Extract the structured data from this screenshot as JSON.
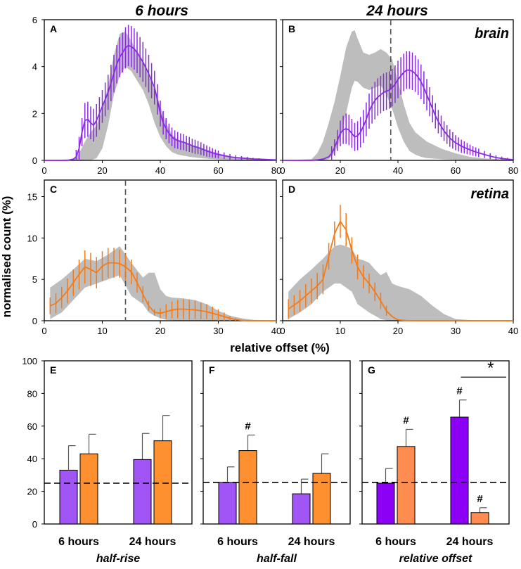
{
  "figure": {
    "col_titles": [
      "6 hours",
      "24 hours"
    ],
    "ylabel": "normalised count (%)",
    "xlabel": "relative offset (%)",
    "panel_letters": [
      "A",
      "B",
      "C",
      "D",
      "E",
      "F",
      "G"
    ],
    "row_labels": [
      "brain",
      "retina"
    ]
  },
  "colors": {
    "purple": "#8B2BE2",
    "orange": "#F57A18",
    "band": "#BDBDBD",
    "bar_purple": "#A155F5",
    "bar_orange": "#FF9030",
    "bar_purple_dark": "#8D00F6",
    "bar_orange_light": "#FF8C50"
  },
  "chart_data": [
    {
      "panel": "A",
      "type": "line",
      "title": "6 hours",
      "xlim": [
        0,
        80
      ],
      "ylim": [
        0,
        6
      ],
      "xticks": [
        "0",
        "20",
        "40",
        "60",
        "80"
      ],
      "yticks": [
        "0",
        "2",
        "4",
        "6"
      ],
      "band": {
        "x": [
          0,
          10,
          12,
          14,
          16,
          18,
          20,
          22,
          24,
          26,
          28,
          30,
          32,
          34,
          36,
          38,
          40,
          42,
          44,
          46,
          48,
          50,
          55,
          60,
          65,
          70,
          75,
          80
        ],
        "upper": [
          0,
          0.05,
          0.3,
          0.8,
          1.2,
          1.5,
          2.2,
          3.2,
          4.5,
          5.4,
          5.5,
          5.1,
          4.6,
          4.2,
          3.6,
          3.0,
          2.3,
          1.6,
          1.1,
          0.9,
          0.8,
          0.7,
          0.5,
          0.3,
          0.15,
          0.08,
          0.05,
          0.03
        ],
        "lower": [
          0,
          0,
          0,
          0,
          0,
          0.1,
          0.5,
          1.5,
          2.8,
          3.6,
          4.0,
          3.8,
          3.4,
          3.0,
          2.4,
          1.6,
          1.0,
          0.6,
          0.35,
          0.25,
          0.2,
          0.15,
          0.08,
          0.04,
          0.02,
          0,
          0,
          0
        ]
      },
      "series": {
        "name": "brain 6h",
        "color": "purple",
        "x": [
          0,
          2,
          4,
          6,
          8,
          10,
          11,
          12,
          13,
          14,
          15,
          16,
          17,
          18,
          19,
          20,
          21,
          22,
          23,
          24,
          25,
          26,
          27,
          28,
          29,
          30,
          31,
          32,
          33,
          34,
          35,
          36,
          37,
          38,
          39,
          40,
          41,
          42,
          43,
          44,
          45,
          46,
          47,
          48,
          49,
          50,
          51,
          52,
          53,
          54,
          55,
          56,
          57,
          58,
          59,
          60,
          62,
          64,
          66,
          68,
          70,
          72,
          74,
          76,
          78,
          80
        ],
        "y": [
          0,
          0,
          0,
          0,
          0,
          0.05,
          0.15,
          0.5,
          1.2,
          1.7,
          1.75,
          1.6,
          1.5,
          1.7,
          2.0,
          2.3,
          2.6,
          2.9,
          3.3,
          3.7,
          4.1,
          4.4,
          4.6,
          4.8,
          4.9,
          4.85,
          4.75,
          4.6,
          4.4,
          4.2,
          3.95,
          3.7,
          3.4,
          3.1,
          2.6,
          2.0,
          1.6,
          1.35,
          1.15,
          1.0,
          0.9,
          0.85,
          0.8,
          0.78,
          0.72,
          0.68,
          0.62,
          0.58,
          0.55,
          0.5,
          0.45,
          0.4,
          0.36,
          0.32,
          0.28,
          0.25,
          0.2,
          0.15,
          0.12,
          0.1,
          0.08,
          0.06,
          0.05,
          0.04,
          0.03,
          0.02
        ],
        "err_from": 11,
        "err_to": 75,
        "err": [
          0,
          0,
          0,
          0,
          0,
          0,
          0.3,
          0.5,
          0.6,
          0.75,
          0.75,
          0.7,
          0.7,
          0.7,
          0.7,
          0.7,
          0.72,
          0.75,
          0.78,
          0.8,
          0.82,
          0.85,
          0.85,
          0.88,
          0.88,
          0.88,
          0.88,
          0.88,
          0.86,
          0.85,
          0.82,
          0.8,
          0.75,
          0.72,
          0.65,
          0.55,
          0.5,
          0.45,
          0.42,
          0.4,
          0.38,
          0.36,
          0.35,
          0.34,
          0.33,
          0.32,
          0.3,
          0.3,
          0.28,
          0.27,
          0.25,
          0.24,
          0.22,
          0.2,
          0.18,
          0.17,
          0.14,
          0.12,
          0.1,
          0.08,
          0.07,
          0.05,
          0.04,
          0.03,
          0.02,
          0.02
        ]
      }
    },
    {
      "panel": "B",
      "type": "line",
      "title": "24 hours",
      "row_label": "brain",
      "xlim": [
        0,
        80
      ],
      "ylim": [
        0,
        6
      ],
      "xticks": [
        "0",
        "20",
        "40",
        "60",
        "80"
      ],
      "yticks": [],
      "vline": 37.5,
      "band": {
        "x": [
          0,
          10,
          12,
          14,
          16,
          18,
          20,
          22,
          24,
          25,
          26,
          28,
          30,
          32,
          34,
          36,
          38,
          40,
          42,
          44,
          46,
          48,
          50,
          55,
          60,
          65,
          70,
          75,
          80
        ],
        "upper": [
          0,
          0.05,
          0.3,
          0.8,
          1.6,
          2.5,
          3.6,
          4.8,
          5.5,
          5.55,
          5.2,
          4.6,
          4.5,
          4.6,
          4.75,
          4.6,
          4.3,
          3.4,
          2.4,
          1.6,
          1.2,
          1.0,
          0.8,
          0.5,
          0.3,
          0.15,
          0.08,
          0.05,
          0.03
        ],
        "lower": [
          0,
          0,
          0,
          0,
          0.05,
          0.3,
          0.9,
          2.0,
          3.1,
          3.4,
          3.35,
          3.1,
          3.0,
          3.1,
          3.2,
          2.8,
          2.2,
          1.4,
          0.8,
          0.4,
          0.25,
          0.15,
          0.1,
          0.05,
          0.02,
          0,
          0,
          0,
          0
        ]
      },
      "series": {
        "name": "brain 24h",
        "color": "purple",
        "x": [
          0,
          2,
          4,
          6,
          8,
          10,
          12,
          14,
          16,
          17,
          18,
          19,
          20,
          21,
          22,
          23,
          24,
          25,
          26,
          27,
          28,
          29,
          30,
          31,
          32,
          33,
          34,
          35,
          36,
          37,
          38,
          39,
          40,
          41,
          42,
          43,
          44,
          45,
          46,
          47,
          48,
          49,
          50,
          51,
          52,
          53,
          54,
          55,
          56,
          57,
          58,
          59,
          60,
          61,
          62,
          63,
          64,
          65,
          66,
          67,
          68,
          70,
          72,
          74,
          76,
          78,
          80
        ],
        "y": [
          0,
          0,
          0,
          0,
          0,
          0,
          0.02,
          0.05,
          0.15,
          0.3,
          0.55,
          0.85,
          1.15,
          1.3,
          1.35,
          1.3,
          1.15,
          1.0,
          1.05,
          1.2,
          1.45,
          1.75,
          2.1,
          2.35,
          2.55,
          2.7,
          2.8,
          2.9,
          2.95,
          3.0,
          3.1,
          3.25,
          3.45,
          3.6,
          3.75,
          3.85,
          3.85,
          3.8,
          3.7,
          3.55,
          3.35,
          3.1,
          2.8,
          2.5,
          2.2,
          1.9,
          1.65,
          1.45,
          1.25,
          1.1,
          0.95,
          0.85,
          0.75,
          0.68,
          0.6,
          0.55,
          0.5,
          0.45,
          0.4,
          0.36,
          0.32,
          0.25,
          0.18,
          0.12,
          0.08,
          0.05,
          0.03
        ],
        "err_from": 17,
        "err_to": 78,
        "err": [
          0,
          0,
          0,
          0,
          0,
          0,
          0,
          0,
          0,
          0.3,
          0.35,
          0.45,
          0.55,
          0.6,
          0.65,
          0.65,
          0.62,
          0.6,
          0.62,
          0.65,
          0.7,
          0.72,
          0.75,
          0.78,
          0.8,
          0.8,
          0.8,
          0.8,
          0.8,
          0.8,
          0.8,
          0.8,
          0.8,
          0.8,
          0.8,
          0.8,
          0.8,
          0.8,
          0.78,
          0.76,
          0.74,
          0.7,
          0.67,
          0.62,
          0.58,
          0.54,
          0.5,
          0.46,
          0.42,
          0.4,
          0.37,
          0.35,
          0.32,
          0.3,
          0.28,
          0.26,
          0.24,
          0.22,
          0.2,
          0.19,
          0.18,
          0.15,
          0.12,
          0.1,
          0.08,
          0.06,
          0.04
        ]
      }
    },
    {
      "panel": "C",
      "type": "line",
      "title": "",
      "xlim": [
        0,
        40
      ],
      "ylim": [
        0,
        17
      ],
      "xticks": [
        "0",
        "10",
        "20",
        "30",
        "40"
      ],
      "yticks": [
        "0",
        "5",
        "10",
        "15"
      ],
      "vline": 14,
      "band": {
        "x": [
          1,
          3,
          5,
          7,
          9,
          11,
          13,
          15,
          17,
          18,
          19,
          20,
          21,
          22,
          24,
          26,
          28,
          30,
          32,
          34,
          36,
          38,
          40
        ],
        "upper": [
          4.0,
          5.0,
          6.2,
          7.5,
          7.2,
          8.0,
          9.0,
          7.0,
          5.2,
          5.8,
          5.8,
          3.8,
          3.0,
          2.8,
          2.7,
          2.5,
          2.0,
          1.2,
          0.6,
          0.3,
          0.1,
          0.05,
          0
        ],
        "lower": [
          0.2,
          1.0,
          2.5,
          4.0,
          4.5,
          5.0,
          5.5,
          3.0,
          2.0,
          1.0,
          0.6,
          0.3,
          0.1,
          0.05,
          0,
          0,
          0,
          0,
          0,
          0,
          0,
          0,
          0
        ]
      },
      "series": {
        "name": "retina 6h",
        "color": "orange",
        "x": [
          1,
          2,
          3,
          4,
          5,
          6,
          7,
          8,
          9,
          10,
          11,
          12,
          13,
          14,
          15,
          16,
          17,
          18,
          19,
          20,
          21,
          22,
          23,
          24,
          25,
          26,
          27,
          28,
          29,
          30,
          31,
          32,
          33,
          34,
          35,
          36,
          37,
          38,
          39,
          40
        ],
        "y": [
          1.8,
          2.1,
          2.8,
          3.6,
          4.6,
          5.6,
          6.5,
          6.2,
          5.8,
          6.6,
          7.0,
          7.0,
          6.9,
          6.5,
          5.9,
          4.6,
          3.2,
          1.8,
          1.0,
          0.9,
          1.1,
          1.3,
          1.4,
          1.4,
          1.35,
          1.3,
          1.2,
          1.1,
          0.9,
          0.7,
          0.5,
          0.3,
          0.15,
          0.05,
          0,
          0,
          0,
          0,
          0,
          0
        ],
        "err_from": 1,
        "err_to": 33,
        "err": [
          1.0,
          1.2,
          1.3,
          1.5,
          1.6,
          1.8,
          2.0,
          2.0,
          1.9,
          1.8,
          1.8,
          1.8,
          1.7,
          1.6,
          1.5,
          1.2,
          1.0,
          0.6,
          0.4,
          0.6,
          0.9,
          1.0,
          1.1,
          1.2,
          1.2,
          1.1,
          1.0,
          0.9,
          0.8,
          0.7,
          0.5,
          0.3,
          0.15,
          0,
          0,
          0,
          0,
          0,
          0,
          0
        ]
      }
    },
    {
      "panel": "D",
      "type": "line",
      "title": "",
      "row_label": "retina",
      "xlim": [
        0,
        40
      ],
      "ylim": [
        0,
        17
      ],
      "xticks": [
        "0",
        "10",
        "20",
        "30",
        "40"
      ],
      "yticks": [],
      "band": {
        "x": [
          1,
          3,
          5,
          7,
          9,
          10,
          11,
          12,
          13,
          14,
          15,
          16,
          17,
          18,
          19,
          20,
          22,
          24,
          26,
          28,
          30,
          34,
          40
        ],
        "upper": [
          3.5,
          5.0,
          6.2,
          7.5,
          9.0,
          9.2,
          9.0,
          8.7,
          7.5,
          7.3,
          7.0,
          6.2,
          5.5,
          5.9,
          4.5,
          4.2,
          3.8,
          3.0,
          1.8,
          0.8,
          0.2,
          0,
          0
        ],
        "lower": [
          0.2,
          1.0,
          2.0,
          3.5,
          4.5,
          4.5,
          4.0,
          3.5,
          2.0,
          1.5,
          1.0,
          0.6,
          0.2,
          0.05,
          0,
          0,
          0,
          0,
          0,
          0,
          0,
          0,
          0
        ]
      },
      "series": {
        "name": "retina 24h",
        "color": "orange",
        "x": [
          1,
          2,
          3,
          4,
          5,
          6,
          7,
          8,
          9,
          10,
          11,
          12,
          13,
          14,
          15,
          16,
          17,
          18,
          19,
          20,
          22,
          24,
          26,
          28,
          30,
          32,
          34,
          36,
          38,
          40
        ],
        "y": [
          1.4,
          1.9,
          2.4,
          3.0,
          3.6,
          4.2,
          5.0,
          7.8,
          10.5,
          12.0,
          11.0,
          8.5,
          6.5,
          5.3,
          4.5,
          3.5,
          2.4,
          1.2,
          0.5,
          0.1,
          0,
          0,
          0,
          0,
          0,
          0,
          0,
          0,
          0,
          0
        ],
        "err_from": 1,
        "err_to": 18,
        "err": [
          1.2,
          1.2,
          1.3,
          1.4,
          1.5,
          1.6,
          1.8,
          1.6,
          1.5,
          2.0,
          2.0,
          1.6,
          1.5,
          1.4,
          1.2,
          1.1,
          1.0,
          0.6,
          0,
          0,
          0,
          0,
          0,
          0,
          0,
          0,
          0,
          0,
          0,
          0
        ]
      }
    },
    {
      "panel": "E",
      "type": "bar",
      "group_label": "half-rise",
      "ylim": [
        0,
        100
      ],
      "yticks": [
        "0",
        "20",
        "40",
        "60",
        "80",
        "100"
      ],
      "categories": [
        "6 hours",
        "24 hours"
      ],
      "hline": 25,
      "series": [
        {
          "name": "brain",
          "color": "bar_purple",
          "values": [
            33,
            39.5
          ],
          "errors": [
            15,
            16
          ]
        },
        {
          "name": "retina",
          "color": "bar_orange",
          "values": [
            43,
            51
          ],
          "errors": [
            12,
            15.5
          ]
        }
      ],
      "annotations": []
    },
    {
      "panel": "F",
      "type": "bar",
      "group_label": "half-fall",
      "ylim": [
        0,
        100
      ],
      "yticks": [],
      "categories": [
        "6 hours",
        "24 hours"
      ],
      "hline": 25.5,
      "series": [
        {
          "name": "brain",
          "color": "bar_purple",
          "values": [
            25.5,
            18.5
          ],
          "errors": [
            9.5,
            9
          ]
        },
        {
          "name": "retina",
          "color": "bar_orange",
          "values": [
            45,
            31
          ],
          "errors": [
            9.5,
            12
          ]
        }
      ],
      "annotations": [
        {
          "text": "#",
          "category": 0,
          "series": 1
        }
      ]
    },
    {
      "panel": "G",
      "type": "bar",
      "group_label": "relative offset",
      "ylim": [
        0,
        100
      ],
      "yticks": [],
      "categories": [
        "6 hours",
        "24 hours"
      ],
      "hline": 25.5,
      "series": [
        {
          "name": "brain",
          "color": "bar_purple_dark",
          "values": [
            25,
            65.5
          ],
          "errors": [
            9,
            10.5
          ]
        },
        {
          "name": "retina",
          "color": "bar_orange_light",
          "values": [
            47.5,
            7
          ],
          "errors": [
            10.5,
            3
          ]
        }
      ],
      "annotations": [
        {
          "text": "#",
          "category": 0,
          "series": 1
        },
        {
          "text": "#",
          "category": 1,
          "series": 0
        },
        {
          "text": "#",
          "category": 1,
          "series": 1
        }
      ],
      "significance": {
        "text": "*",
        "y": 90
      }
    }
  ]
}
